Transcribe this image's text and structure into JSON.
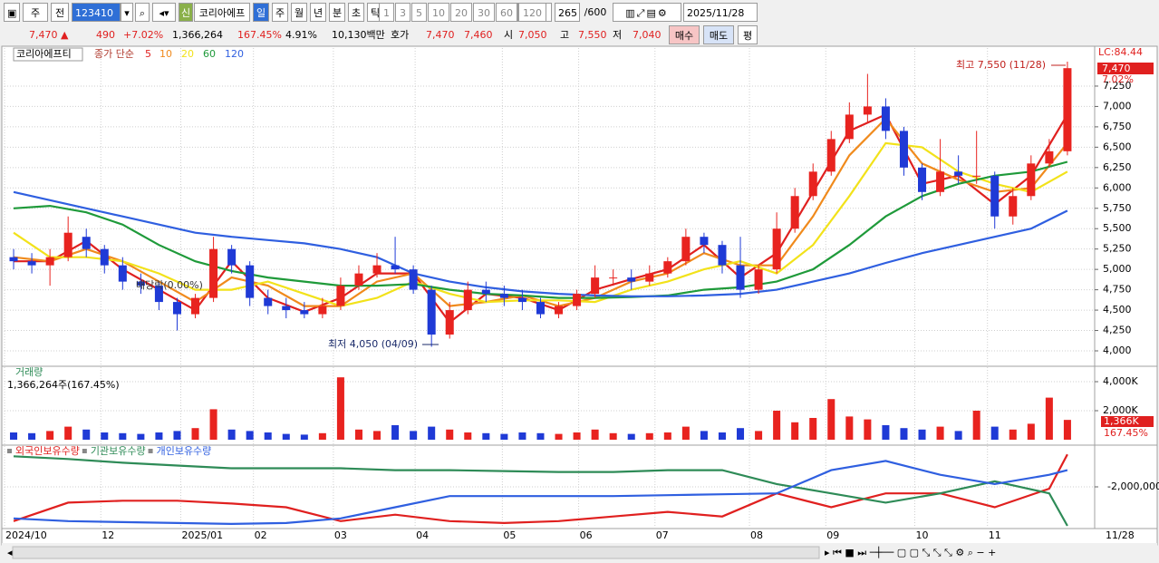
{
  "toolbar": {
    "market": "주",
    "mode": "전",
    "code": "123410",
    "badge": "신",
    "name": "코리아에프",
    "periods": [
      "일",
      "주",
      "월",
      "년",
      "분",
      "초",
      "틱"
    ],
    "intervals": [
      "1",
      "3",
      "5",
      "10",
      "20",
      "30",
      "60",
      "120"
    ],
    "count": 265,
    "max": "/600",
    "date": "2025/11/28"
  },
  "quote_bar": {
    "price": "7,470 ▲",
    "change": "490",
    "change_pct": "+7.02%",
    "volume": "1,366,264",
    "volume_ratio": "167.45%",
    "turnover": "4.91%",
    "amount": "10,130백만",
    "hoga_label": "호가",
    "ask": "7,470",
    "bid": "7,460",
    "open_label": "시",
    "open": "7,050",
    "high_label": "고",
    "high": "7,550",
    "low_label": "저",
    "low": "7,040",
    "buy": "매수",
    "sell": "매도",
    "avg": "평"
  },
  "chart_data": [
    {
      "type": "candlestick",
      "title": "코리아에프티",
      "ma_label": "종가 단순",
      "up_color": "#e8231f",
      "down_color": "#1f3ad6",
      "xlim": [
        -0.5,
        59.5
      ],
      "ylim": [
        3822,
        7717
      ],
      "yticks": [
        {
          "value": 4000,
          "label": "4,000"
        },
        {
          "value": 4250,
          "label": "4,250"
        },
        {
          "value": 4500,
          "label": "4,500"
        },
        {
          "value": 4750,
          "label": "4,750"
        },
        {
          "value": 5000,
          "label": "5,000"
        },
        {
          "value": 5250,
          "label": "5,250"
        },
        {
          "value": 5500,
          "label": "5,500"
        },
        {
          "value": 5750,
          "label": "5,750"
        },
        {
          "value": 6000,
          "label": "6,000"
        },
        {
          "value": 6250,
          "label": "6,250"
        },
        {
          "value": 6500,
          "label": "6,500"
        },
        {
          "value": 6750,
          "label": "6,750"
        },
        {
          "value": 7000,
          "label": "7,000"
        },
        {
          "value": 7250,
          "label": "7,250"
        }
      ],
      "grid": true,
      "open": [
        5150,
        5100,
        5050,
        5150,
        5400,
        5250,
        5050,
        4850,
        4800,
        4600,
        4450,
        4650,
        5250,
        5050,
        4650,
        4550,
        4500,
        4450,
        4550,
        4800,
        4950,
        5050,
        5000,
        4750,
        4200,
        4500,
        4750,
        4700,
        4650,
        4600,
        4450,
        4550,
        4700,
        4900,
        4900,
        4850,
        4950,
        5100,
        5400,
        5300,
        5050,
        4750,
        5000,
        5500,
        5900,
        6200,
        6600,
        6900,
        7000,
        6700,
        6250,
        5950,
        6200,
        6150,
        6150,
        5650,
        5900,
        6300,
        6450
      ],
      "high": [
        5250,
        5200,
        5250,
        5650,
        5500,
        5300,
        5150,
        4950,
        4850,
        4650,
        4700,
        5400,
        5300,
        5100,
        4750,
        4650,
        4600,
        4650,
        4900,
        5050,
        5200,
        5400,
        5050,
        4800,
        4600,
        4850,
        4850,
        4800,
        4750,
        4650,
        4600,
        4750,
        5050,
        5000,
        5000,
        5050,
        5150,
        5500,
        5450,
        5350,
        5400,
        5050,
        5700,
        6000,
        6300,
        6700,
        7050,
        7400,
        7100,
        6750,
        6300,
        6600,
        6400,
        6700,
        6200,
        6000,
        6400,
        6600,
        7550
      ],
      "low": [
        5000,
        4950,
        4800,
        5100,
        5150,
        4950,
        4750,
        4700,
        4500,
        4250,
        4400,
        4600,
        4950,
        4550,
        4450,
        4400,
        4400,
        4400,
        4500,
        4750,
        4900,
        4950,
        4700,
        4050,
        4150,
        4450,
        4600,
        4550,
        4500,
        4400,
        4400,
        4500,
        4650,
        4800,
        4750,
        4800,
        4900,
        5050,
        5200,
        4950,
        4650,
        4700,
        4950,
        5450,
        5850,
        6150,
        6550,
        6800,
        6600,
        6150,
        5850,
        5900,
        6050,
        6050,
        5500,
        5550,
        5850,
        6250,
        6400
      ],
      "close": [
        5100,
        5050,
        5150,
        5450,
        5250,
        5050,
        4850,
        4800,
        4600,
        4450,
        4650,
        5250,
        5050,
        4650,
        4550,
        4500,
        4450,
        4550,
        4800,
        4950,
        5050,
        5000,
        4750,
        4200,
        4500,
        4750,
        4700,
        4650,
        4600,
        4450,
        4550,
        4700,
        4900,
        4900,
        4850,
        4950,
        5100,
        5400,
        5300,
        5050,
        4750,
        5000,
        5500,
        5900,
        6200,
        6600,
        6900,
        7000,
        6700,
        6250,
        5950,
        6200,
        6150,
        6150,
        5650,
        5900,
        6300,
        6450,
        7470
      ],
      "moving_averages": {
        "x": [
          0,
          2,
          4,
          6,
          8,
          10,
          12,
          14,
          16,
          18,
          20,
          22,
          24,
          26,
          28,
          30,
          32,
          34,
          36,
          38,
          40,
          42,
          44,
          46,
          48,
          50,
          52,
          54,
          56,
          58
        ],
        "series": [
          {
            "name": "5",
            "color": "#e0201f",
            "values": [
              5100,
              5100,
              5350,
              5000,
              4750,
              4500,
              5100,
              4650,
              4480,
              4650,
              4950,
              4950,
              4350,
              4700,
              4650,
              4500,
              4750,
              4880,
              5000,
              5300,
              4900,
              5200,
              5950,
              6700,
              6900,
              6050,
              6150,
              5800,
              6150,
              6900
            ]
          },
          {
            "name": "10",
            "color": "#f08a1c",
            "values": [
              5150,
              5100,
              5250,
              5100,
              4850,
              4600,
              4900,
              4800,
              4550,
              4550,
              4850,
              4950,
              4550,
              4600,
              4680,
              4550,
              4650,
              4850,
              4950,
              5200,
              5050,
              5050,
              5650,
              6400,
              6850,
              6300,
              6100,
              5950,
              6000,
              6550
            ]
          },
          {
            "name": "20",
            "color": "#f2e21a",
            "values": [
              5450,
              5150,
              5150,
              5100,
              4950,
              4750,
              4750,
              4850,
              4700,
              4550,
              4650,
              4850,
              4700,
              4600,
              4620,
              4620,
              4600,
              4750,
              4850,
              5000,
              5100,
              4950,
              5300,
              5900,
              6550,
              6500,
              6200,
              6050,
              5950,
              6200
            ]
          },
          {
            "name": "60",
            "color": "#1f9a3a",
            "values": [
              5750,
              5780,
              5700,
              5550,
              5300,
              5100,
              4980,
              4900,
              4850,
              4800,
              4800,
              4820,
              4750,
              4700,
              4680,
              4650,
              4650,
              4660,
              4680,
              4750,
              4780,
              4850,
              5000,
              5300,
              5650,
              5900,
              6050,
              6150,
              6200,
              6320
            ]
          },
          {
            "name": "120",
            "color": "#2f5fe0",
            "values": [
              5950,
              5850,
              5750,
              5650,
              5550,
              5450,
              5400,
              5360,
              5320,
              5250,
              5150,
              4950,
              4850,
              4780,
              4730,
              4700,
              4680,
              4670,
              4670,
              4680,
              4700,
              4750,
              4850,
              4950,
              5080,
              5200,
              5300,
              5400,
              5500,
              5720
            ]
          }
        ]
      },
      "annotations": [
        "최고 7,550 (11/28)",
        "최저 4,050 (04/09)",
        "배당락(0.00%)"
      ],
      "price_labels": [
        "LC:84.44",
        "7,470",
        "7.02%"
      ]
    },
    {
      "type": "bar",
      "title": "거래량",
      "subtitle": "1,366,264주(167.45%)",
      "xlim": [
        -0.5,
        59.5
      ],
      "ylim": [
        -312000,
        5000000
      ],
      "yticks": [
        {
          "value": 2000000,
          "label": "2,000K"
        },
        {
          "value": 4000000,
          "label": "4,000K"
        }
      ],
      "values": [
        500000,
        450000,
        600000,
        900000,
        700000,
        500000,
        450000,
        400000,
        500000,
        600000,
        800000,
        2100000,
        700000,
        600000,
        500000,
        400000,
        350000,
        450000,
        4300000,
        700000,
        600000,
        1000000,
        600000,
        900000,
        700000,
        500000,
        450000,
        400000,
        500000,
        450000,
        400000,
        500000,
        700000,
        450000,
        400000,
        450000,
        500000,
        900000,
        600000,
        500000,
        800000,
        600000,
        2000000,
        1200000,
        1500000,
        2800000,
        1600000,
        1400000,
        1000000,
        800000,
        700000,
        900000,
        600000,
        2000000,
        900000,
        700000,
        1100000,
        2900000,
        1366264
      ],
      "last_labels": [
        "1,366K",
        "167.45%"
      ]
    },
    {
      "type": "line",
      "xlim": [
        -0.5,
        59.5
      ],
      "ylim": [
        -4200000,
        200000
      ],
      "yticks": [
        {
          "value": -2000000,
          "label": "-2,000,000"
        }
      ],
      "x": [
        0,
        3,
        6,
        9,
        12,
        15,
        18,
        21,
        24,
        27,
        30,
        33,
        36,
        39,
        42,
        45,
        48,
        51,
        54,
        57,
        58
      ],
      "series": [
        {
          "name": "외국인보유수량",
          "color": "#e0201f",
          "values": [
            -3850000,
            -2850000,
            -2750000,
            -2750000,
            -2900000,
            -3100000,
            -3850000,
            -3500000,
            -3850000,
            -3950000,
            -3850000,
            -3600000,
            -3350000,
            -3600000,
            -2350000,
            -3100000,
            -2350000,
            -2350000,
            -3100000,
            -2100000,
            -250000
          ]
        },
        {
          "name": "기관보유수량",
          "color": "#2e8b57",
          "values": [
            -350000,
            -500000,
            -700000,
            -850000,
            -1000000,
            -1000000,
            -1000000,
            -1100000,
            -1100000,
            -1150000,
            -1200000,
            -1200000,
            -1100000,
            -1100000,
            -1850000,
            -2350000,
            -2850000,
            -2350000,
            -1700000,
            -2350000,
            -4100000
          ]
        },
        {
          "name": "개인보유수량",
          "color": "#2f5fe0",
          "values": [
            -3700000,
            -3850000,
            -3900000,
            -3950000,
            -4000000,
            -3950000,
            -3700000,
            -3100000,
            -2500000,
            -2500000,
            -2500000,
            -2500000,
            -2450000,
            -2400000,
            -2350000,
            -1100000,
            -600000,
            -1350000,
            -1850000,
            -1350000,
            -1100000
          ]
        }
      ],
      "xticks": [
        {
          "value": -0.5,
          "label": "2024/10"
        },
        {
          "value": 4.8,
          "label": "12"
        },
        {
          "value": 9.2,
          "label": "2025/01"
        },
        {
          "value": 13.2,
          "label": "02"
        },
        {
          "value": 17.6,
          "label": "03"
        },
        {
          "value": 22.1,
          "label": "04"
        },
        {
          "value": 26.9,
          "label": "05"
        },
        {
          "value": 31.1,
          "label": "06"
        },
        {
          "value": 35.3,
          "label": "07"
        },
        {
          "value": 40.5,
          "label": "08"
        },
        {
          "value": 44.7,
          "label": "09"
        },
        {
          "value": 49.6,
          "label": "10"
        },
        {
          "value": 53.6,
          "label": "11"
        }
      ],
      "x_end_label": "11/28"
    }
  ]
}
